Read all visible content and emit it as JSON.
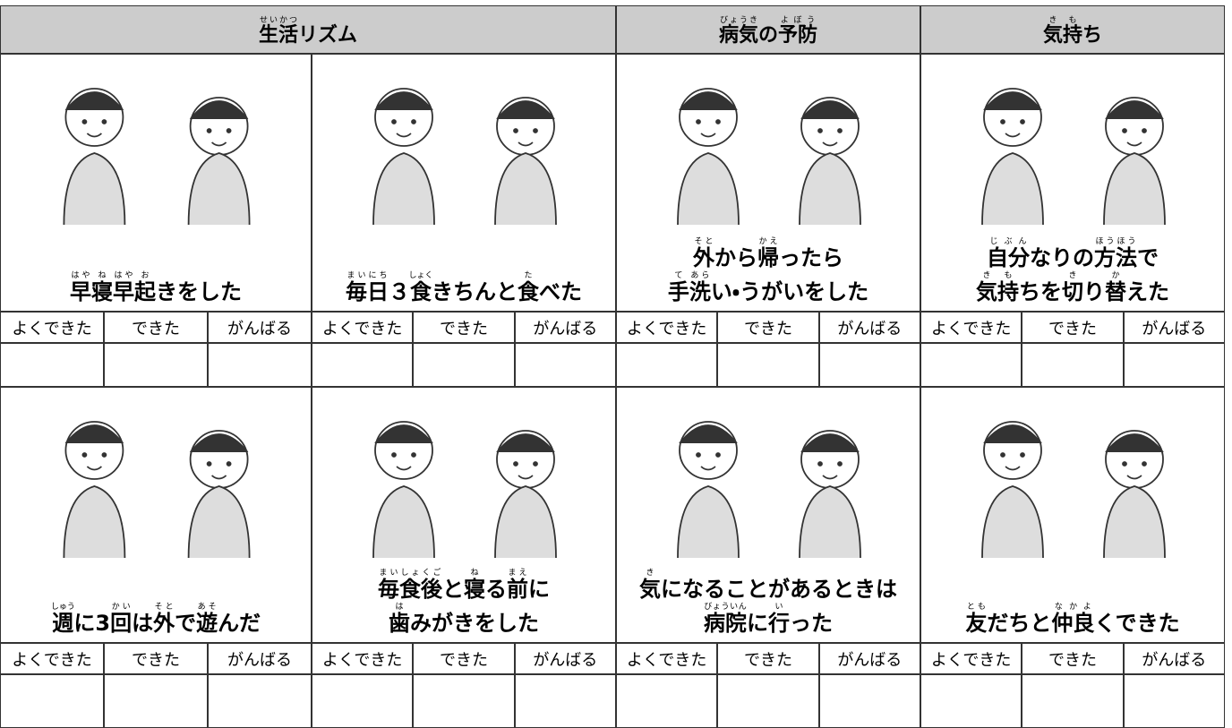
{
  "header": [
    {
      "segments": [
        {
          "t": "生活",
          "r": "せいかつ"
        },
        "リズム"
      ]
    },
    {
      "segments": [
        {
          "t": "病気",
          "r": "びょうき"
        },
        "の",
        {
          "t": "予防",
          "r": "よぼう"
        }
      ]
    },
    {
      "segments": [
        {
          "t": "気持",
          "r": "きも"
        },
        "ち"
      ]
    }
  ],
  "cards": [
    {
      "caption": [
        [
          {
            "t": "早",
            "r": "はや"
          },
          {
            "t": "寝",
            "r": "ね"
          },
          {
            "t": "早",
            "r": "はや"
          },
          {
            "t": "起",
            "r": "お"
          },
          "きをした"
        ]
      ],
      "ratings": [
        "よくできた",
        "できた",
        "がんばる"
      ]
    },
    {
      "caption": [
        [
          {
            "t": "毎日",
            "r": "まいにち"
          },
          "３",
          {
            "t": "食",
            "r": "しょく"
          },
          "きちんと",
          {
            "t": "食",
            "r": "た"
          },
          "べた"
        ]
      ],
      "ratings": [
        "よくできた",
        "できた",
        "がんばる"
      ]
    },
    {
      "caption": [
        [
          {
            "t": "外",
            "r": "そと"
          },
          "から",
          {
            "t": "帰",
            "r": "かえ"
          },
          "ったら"
        ],
        [
          {
            "t": "手",
            "r": "て"
          },
          {
            "t": "洗",
            "r": "あら"
          },
          "い・うがいをした"
        ]
      ],
      "ratings": [
        "よくできた",
        "できた",
        "がんばる"
      ]
    },
    {
      "caption": [
        [
          {
            "t": "自分",
            "r": "じぶん"
          },
          "なりの",
          {
            "t": "方法",
            "r": "ほうほう"
          },
          "で"
        ],
        [
          {
            "t": "気持",
            "r": "きも"
          },
          "ちを",
          {
            "t": "切",
            "r": "き"
          },
          "り",
          {
            "t": "替",
            "r": "か"
          },
          "えた"
        ]
      ],
      "ratings": [
        "よくできた",
        "できた",
        "がんばる"
      ]
    },
    {
      "caption": [
        [
          {
            "t": "週",
            "r": "しゅう"
          },
          "に3",
          {
            "t": "回",
            "r": "かい"
          },
          "は",
          {
            "t": "外",
            "r": "そと"
          },
          "で",
          {
            "t": "遊",
            "r": "あそ"
          },
          "んだ"
        ]
      ],
      "ratings": [
        "よくできた",
        "できた",
        "がんばる"
      ]
    },
    {
      "caption": [
        [
          {
            "t": "毎食後",
            "r": "まいしょくご"
          },
          "と",
          {
            "t": "寝",
            "r": "ね"
          },
          "る",
          {
            "t": "前",
            "r": "まえ"
          },
          "に"
        ],
        [
          {
            "t": "歯",
            "r": "は"
          },
          "みがきをした"
        ]
      ],
      "ratings": [
        "よくできた",
        "できた",
        "がんばる"
      ]
    },
    {
      "caption": [
        [
          {
            "t": "気",
            "r": "き"
          },
          "になることがあるときは"
        ],
        [
          {
            "t": "病院",
            "r": "びょういん"
          },
          "に",
          {
            "t": "行",
            "r": "い"
          },
          "った"
        ]
      ],
      "ratings": [
        "よくできた",
        "できた",
        "がんばる"
      ]
    },
    {
      "caption": [
        [
          {
            "t": "友",
            "r": "とも"
          },
          "だちと",
          {
            "t": "仲良",
            "r": "なかよ"
          },
          "くできた"
        ]
      ],
      "ratings": [
        "よくできた",
        "できた",
        "がんばる"
      ]
    }
  ]
}
